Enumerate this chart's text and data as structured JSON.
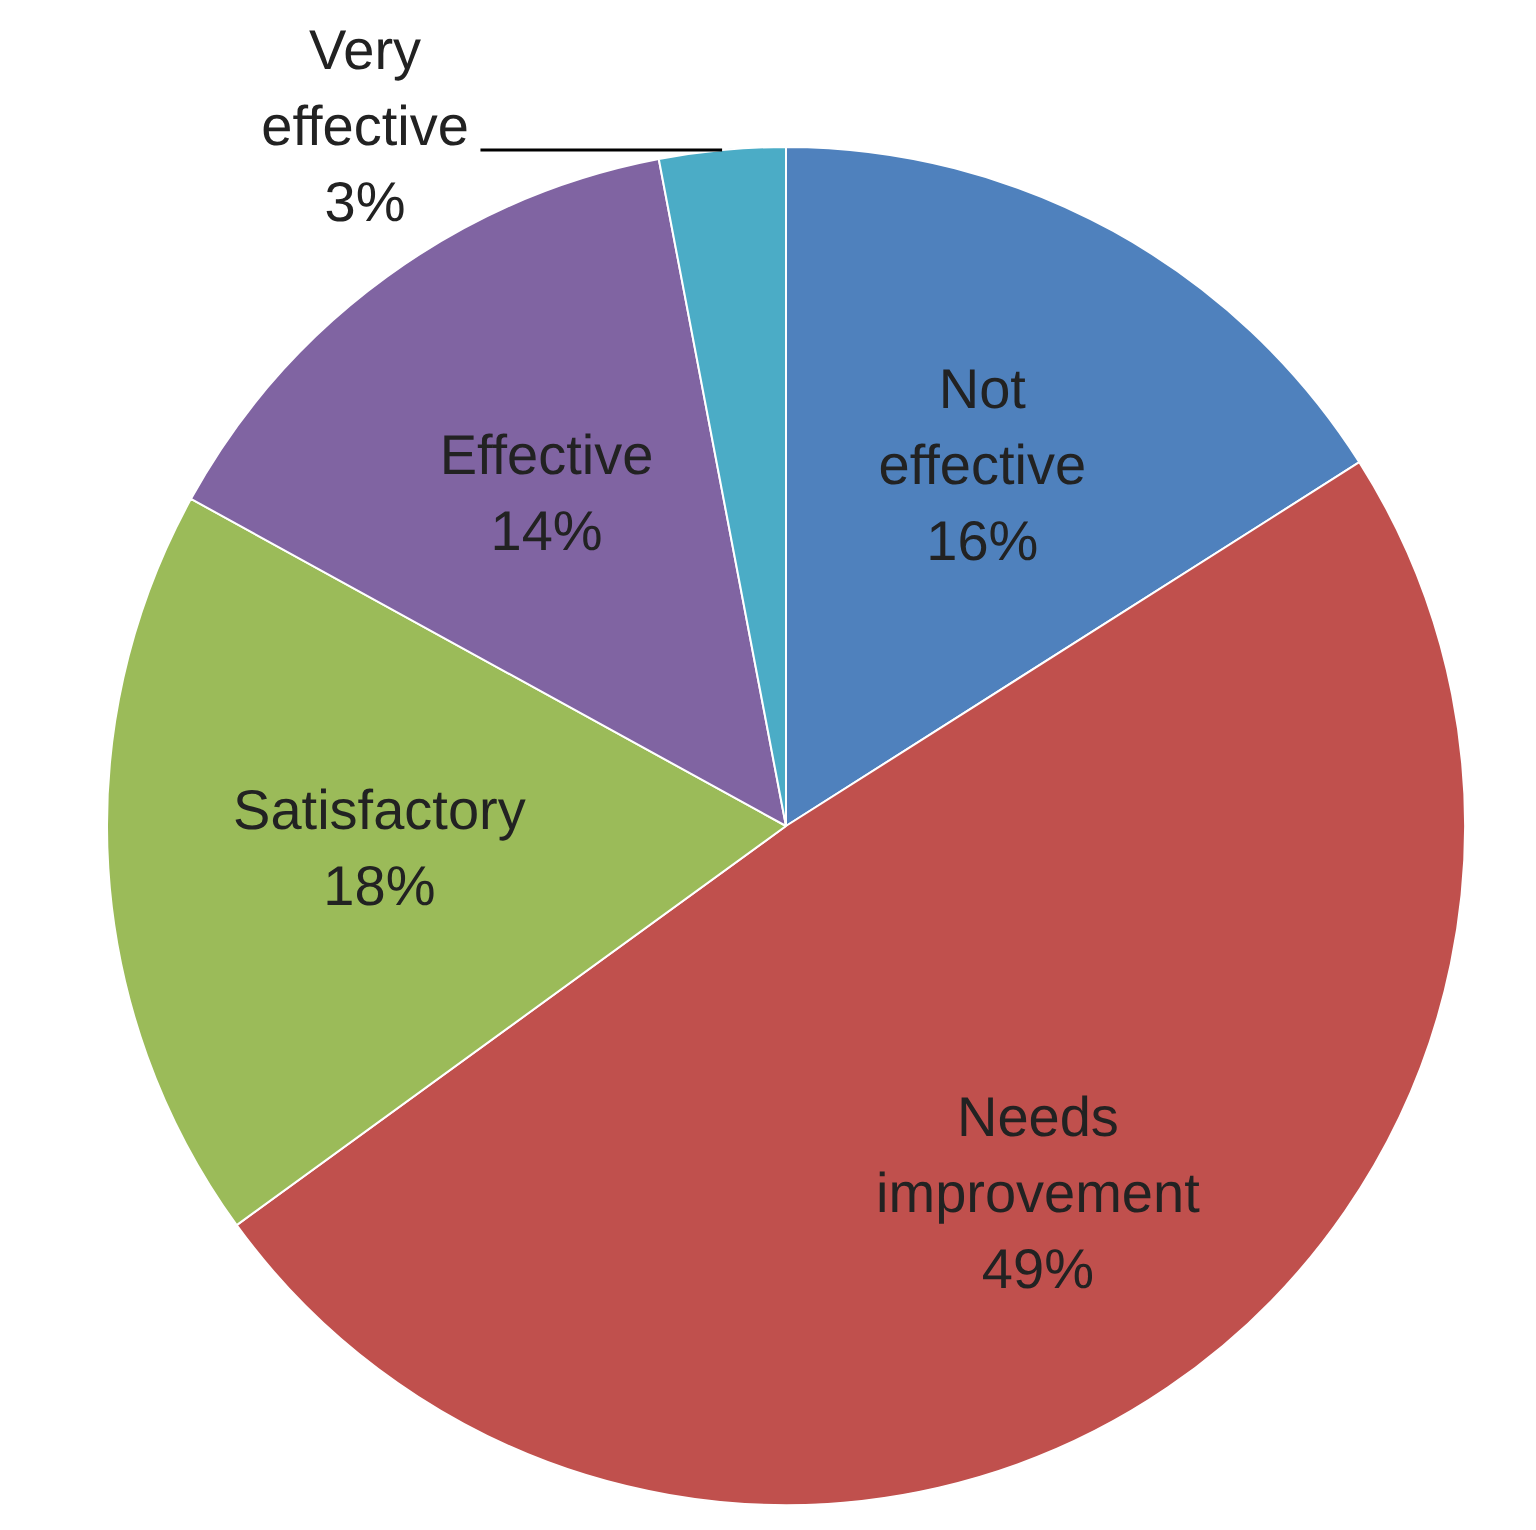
{
  "chart_data": {
    "type": "pie",
    "categories": [
      "Not effective",
      "Needs improvement",
      "Satisfactory",
      "Effective",
      "Very effective"
    ],
    "values": [
      16,
      49,
      18,
      14,
      3
    ],
    "value_labels": [
      "16%",
      "49%",
      "18%",
      "14%",
      "3%"
    ],
    "colors": [
      "#4f81bd",
      "#c0504d",
      "#9bbb59",
      "#8064a2",
      "#4bacc6"
    ],
    "legend": false
  }
}
